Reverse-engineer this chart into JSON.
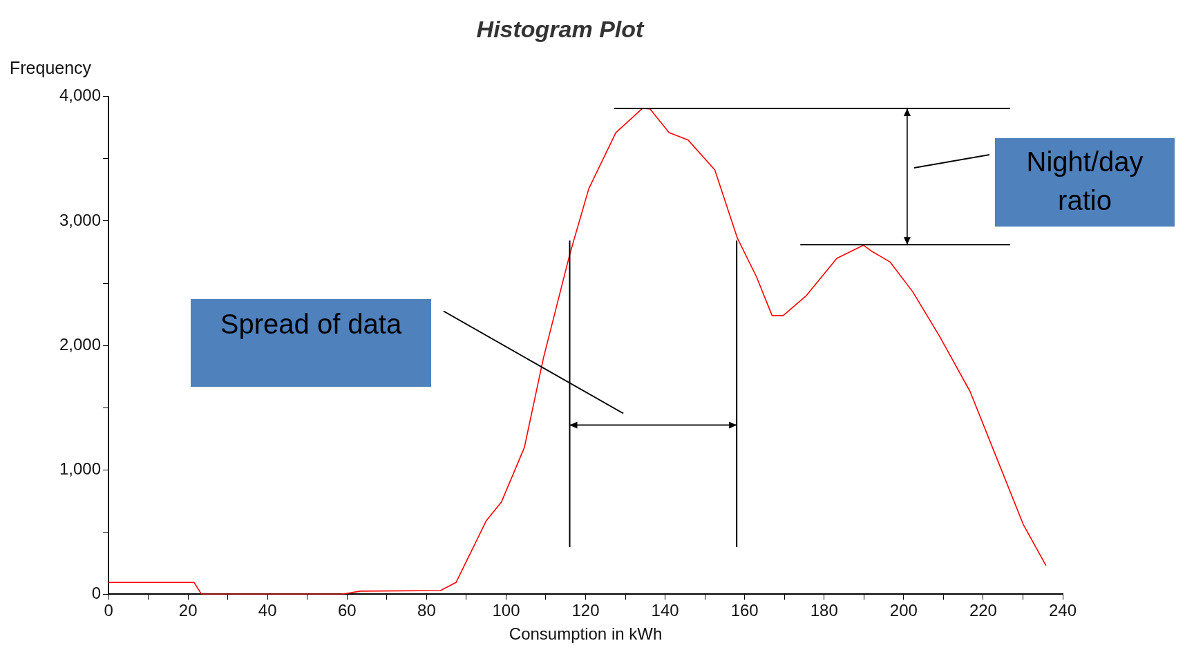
{
  "chart_data": {
    "type": "line",
    "title": "Histogram Plot",
    "xlabel": "Consumption in kWh",
    "ylabel": "Frequency",
    "series": [
      {
        "color": "#ff0000",
        "x": [
          0,
          21.5,
          23.4,
          58.6,
          63.3,
          83.5,
          87.4,
          95,
          98.8,
          104.6,
          109.4,
          116,
          120.8,
          127.6,
          134.3,
          136.2,
          141,
          145.8,
          152.5,
          158.2,
          163,
          166.9,
          169.7,
          175.5,
          183.2,
          189.9,
          191.8,
          196.6,
          202.3,
          209,
          216.7,
          223.4,
          230.1,
          235.8
        ],
        "values": [
          95,
          95,
          0,
          0,
          25,
          30,
          95,
          590,
          740,
          1180,
          1900,
          2730,
          3260,
          3710,
          3905,
          3900,
          3710,
          3650,
          3410,
          2860,
          2550,
          2240,
          2240,
          2400,
          2700,
          2805,
          2760,
          2670,
          2430,
          2075,
          1630,
          1095,
          560,
          230
        ]
      }
    ],
    "xlim": [
      0,
      240
    ],
    "xticks": [
      0,
      {
        "value": 10,
        "label": null
      },
      20,
      {
        "value": 30,
        "label": null
      },
      40,
      {
        "value": 50,
        "label": null
      },
      60,
      {
        "value": 70,
        "label": null
      },
      80,
      {
        "value": 90,
        "label": null
      },
      100,
      {
        "value": 110,
        "label": null
      },
      120,
      {
        "value": 130,
        "label": null
      },
      140,
      {
        "value": 150,
        "label": null
      },
      160,
      {
        "value": 170,
        "label": null
      },
      180,
      {
        "value": 190,
        "label": null
      },
      200,
      {
        "value": 210,
        "label": null
      },
      220,
      {
        "value": 230,
        "label": null
      },
      240
    ],
    "ylim": [
      0,
      4000
    ],
    "yticks": [
      {
        "value": 0,
        "label": "0"
      },
      {
        "value": 500,
        "label": null
      },
      {
        "value": 1000,
        "label": "1,000"
      },
      {
        "value": 1500,
        "label": null
      },
      {
        "value": 2000,
        "label": "2,000"
      },
      {
        "value": 2500,
        "label": null
      },
      {
        "value": 3000,
        "label": "3,000"
      },
      {
        "value": 3500,
        "label": null
      },
      {
        "value": 4000,
        "label": "4,000"
      }
    ],
    "ref_lines": [
      {
        "axis": "x",
        "value": 116,
        "color": "#000000"
      },
      {
        "axis": "x",
        "value": 158,
        "color": "#000000"
      },
      {
        "axis": "y",
        "value": 3905,
        "color": "#000000"
      },
      {
        "axis": "y",
        "value": 2810,
        "color": "#000000"
      }
    ],
    "annotations": [
      "Spread of data",
      "Night/day ratio"
    ],
    "grid": false,
    "legend": false,
    "marker": "none",
    "line_style": "solid"
  }
}
